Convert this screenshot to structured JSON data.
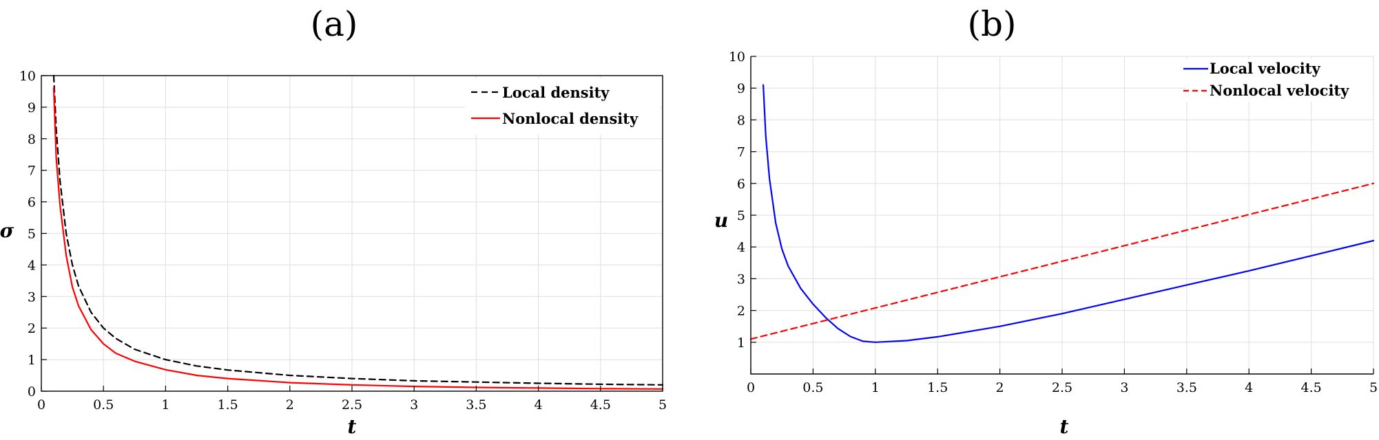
{
  "chart_data": [
    {
      "type": "line",
      "title": "(a)",
      "xlabel": "t",
      "ylabel": "σ",
      "xlim": [
        0,
        5
      ],
      "ylim": [
        0,
        10
      ],
      "xticks": [
        "0",
        "0.5",
        "1",
        "1.5",
        "2",
        "2.5",
        "3",
        "3.5",
        "4",
        "4.5",
        "5"
      ],
      "yticks": [
        "0",
        "1",
        "2",
        "3",
        "4",
        "5",
        "6",
        "7",
        "8",
        "9",
        "10"
      ],
      "grid": true,
      "legend_position": "top-right",
      "series": [
        {
          "name": "Local density",
          "color": "#000000",
          "dash": "dashed",
          "x": [
            0.1,
            0.12,
            0.15,
            0.2,
            0.25,
            0.3,
            0.4,
            0.5,
            0.6,
            0.75,
            1.0,
            1.25,
            1.5,
            2.0,
            2.5,
            3.0,
            3.5,
            4.0,
            4.5,
            5.0
          ],
          "y": [
            10.0,
            8.33,
            6.67,
            5.0,
            4.0,
            3.33,
            2.5,
            2.0,
            1.67,
            1.33,
            1.0,
            0.8,
            0.67,
            0.5,
            0.4,
            0.33,
            0.29,
            0.25,
            0.22,
            0.2
          ]
        },
        {
          "name": "Nonlocal density",
          "color": "#ff0000",
          "dash": "solid",
          "x": [
            0.1,
            0.12,
            0.15,
            0.2,
            0.25,
            0.3,
            0.4,
            0.5,
            0.6,
            0.75,
            1.0,
            1.25,
            1.5,
            2.0,
            2.5,
            3.0,
            3.5,
            4.0,
            4.5,
            5.0
          ],
          "y": [
            9.6,
            7.4,
            5.9,
            4.3,
            3.3,
            2.7,
            1.95,
            1.5,
            1.2,
            0.95,
            0.68,
            0.5,
            0.4,
            0.27,
            0.2,
            0.15,
            0.12,
            0.1,
            0.08,
            0.07
          ]
        }
      ]
    },
    {
      "type": "line",
      "title": "(b)",
      "xlabel": "t",
      "ylabel": "u",
      "xlim": [
        0,
        5
      ],
      "ylim": [
        0,
        10
      ],
      "xticks": [
        "0",
        "0.5",
        "1",
        "1.5",
        "2",
        "2.5",
        "3",
        "3.5",
        "4",
        "4.5",
        "5"
      ],
      "yticks": [
        "1",
        "2",
        "3",
        "4",
        "5",
        "6",
        "7",
        "8",
        "9",
        "10"
      ],
      "grid": true,
      "legend_position": "top-right",
      "series": [
        {
          "name": "Local velocity",
          "color": "#0000ff",
          "dash": "solid",
          "x": [
            0.1,
            0.12,
            0.15,
            0.2,
            0.25,
            0.3,
            0.4,
            0.5,
            0.6,
            0.7,
            0.8,
            0.9,
            1.0,
            1.25,
            1.5,
            2.0,
            2.5,
            3.0,
            3.5,
            4.0,
            4.5,
            5.0
          ],
          "y": [
            9.1,
            7.5,
            6.15,
            4.75,
            3.93,
            3.4,
            2.7,
            2.2,
            1.78,
            1.43,
            1.18,
            1.03,
            1.0,
            1.05,
            1.17,
            1.5,
            1.9,
            2.35,
            2.8,
            3.25,
            3.72,
            4.2
          ]
        },
        {
          "name": "Nonlocal velocity",
          "color": "#ff0000",
          "dash": "dashed",
          "x": [
            0.0,
            5.0
          ],
          "y": [
            1.1,
            6.0
          ]
        }
      ]
    }
  ]
}
